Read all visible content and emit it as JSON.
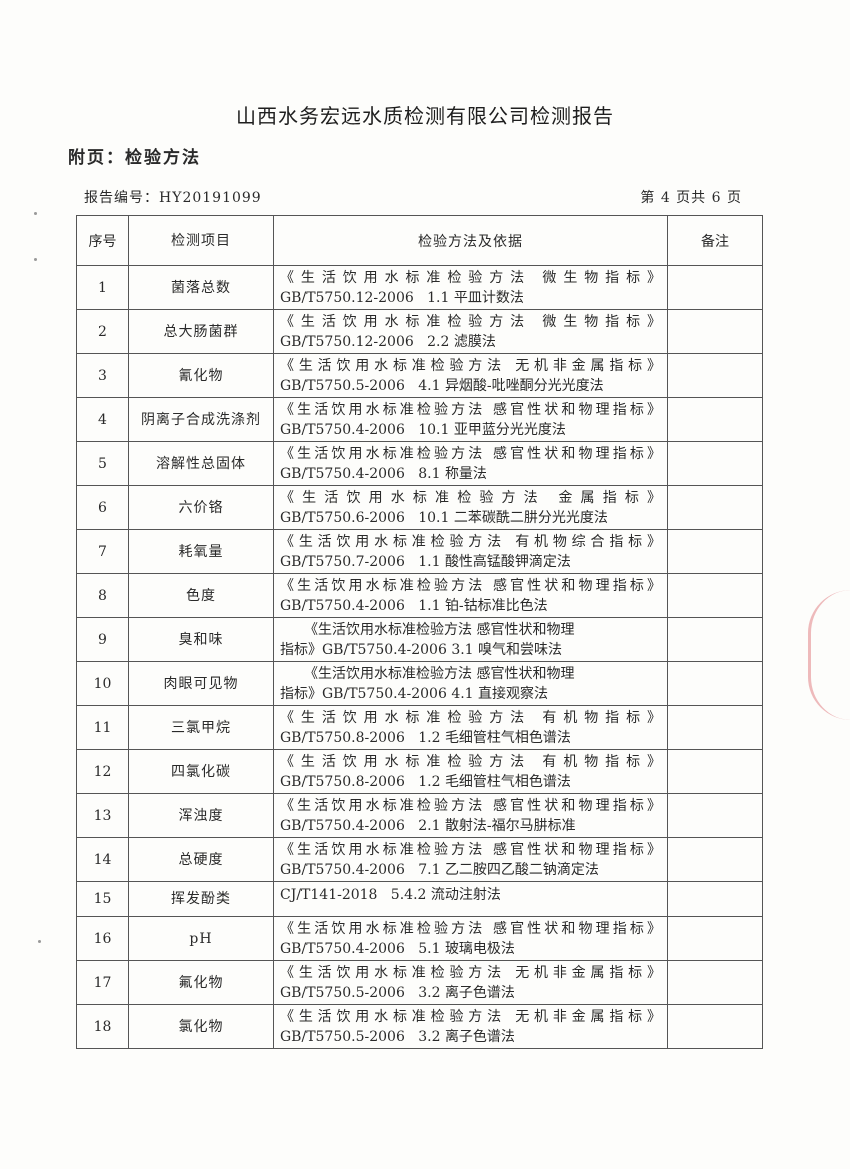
{
  "header": {
    "title": "山西水务宏远水质检测有限公司检测报告",
    "subtitle": "附页：检验方法",
    "report_no": "报告编号：HY20191099",
    "page_info": "第 4 页共 6 页"
  },
  "table": {
    "headers": [
      "序号",
      "检测项目",
      "检验方法及依据",
      "备注"
    ],
    "rows": [
      {
        "no": "1",
        "item": "菌落总数",
        "line1": "《生活饮用水标准检验方法  微生物指标》",
        "line2": "GB/T5750.12-2006   1.1 平皿计数法"
      },
      {
        "no": "2",
        "item": "总大肠菌群",
        "line1": "《生活饮用水标准检验方法  微生物指标》",
        "line2": "GB/T5750.12-2006   2.2 滤膜法"
      },
      {
        "no": "3",
        "item": "氰化物",
        "line1": "《生活饮用水标准检验方法 无机非金属指标》",
        "line2": "GB/T5750.5-2006   4.1 异烟酸-吡唑酮分光光度法"
      },
      {
        "no": "4",
        "item": "阴离子合成洗涤剂",
        "line1": "《生活饮用水标准检验方法 感官性状和物理指标》",
        "line2": "GB/T5750.4-2006   10.1 亚甲蓝分光光度法"
      },
      {
        "no": "5",
        "item": "溶解性总固体",
        "line1": "《生活饮用水标准检验方法 感官性状和物理指标》",
        "line2": "GB/T5750.4-2006   8.1 称量法"
      },
      {
        "no": "6",
        "item": "六价铬",
        "line1": "《生活饮用水标准检验方法  金属指标》",
        "line2": "GB/T5750.6-2006   10.1 二苯碳酰二肼分光光度法"
      },
      {
        "no": "7",
        "item": "耗氧量",
        "line1": "《生活饮用水标准检验方法 有机物综合指标》",
        "line2": "GB/T5750.7-2006   1.1 酸性高锰酸钾滴定法"
      },
      {
        "no": "8",
        "item": "色度",
        "line1": "《生活饮用水标准检验方法 感官性状和物理指标》",
        "line2": "GB/T5750.4-2006   1.1 铂-钴标准比色法"
      },
      {
        "no": "9",
        "item": "臭和味",
        "line1": "《生活饮用水标准检验方法 感官性状和物理",
        "line2": "指标》GB/T5750.4-2006 3.1 嗅气和尝味法"
      },
      {
        "no": "10",
        "item": "肉眼可见物",
        "line1": "《生活饮用水标准检验方法 感官性状和物理",
        "line2": "指标》GB/T5750.4-2006 4.1 直接观察法"
      },
      {
        "no": "11",
        "item": "三氯甲烷",
        "line1": "《生活饮用水标准检验方法  有机物指标》",
        "line2": "GB/T5750.8-2006   1.2 毛细管柱气相色谱法"
      },
      {
        "no": "12",
        "item": "四氯化碳",
        "line1": "《生活饮用水标准检验方法  有机物指标》",
        "line2": "GB/T5750.8-2006   1.2 毛细管柱气相色谱法"
      },
      {
        "no": "13",
        "item": "浑浊度",
        "line1": "《生活饮用水标准检验方法 感官性状和物理指标》",
        "line2": "GB/T5750.4-2006   2.1 散射法-福尔马肼标准"
      },
      {
        "no": "14",
        "item": "总硬度",
        "line1": "《生活饮用水标准检验方法 感官性状和物理指标》",
        "line2": "GB/T5750.4-2006   7.1 乙二胺四乙酸二钠滴定法"
      },
      {
        "no": "15",
        "item": "挥发酚类",
        "line1": "",
        "line2": "CJ/T141-2018   5.4.2 流动注射法"
      },
      {
        "no": "16",
        "item": "pH",
        "line1": "《生活饮用水标准检验方法 感官性状和物理指标》",
        "line2": "GB/T5750.4-2006   5.1 玻璃电极法"
      },
      {
        "no": "17",
        "item": "氟化物",
        "line1": "《生活饮用水标准检验方法 无机非金属指标》",
        "line2": "GB/T5750.5-2006   3.2 离子色谱法"
      },
      {
        "no": "18",
        "item": "氯化物",
        "line1": "《生活饮用水标准检验方法 无机非金属指标》",
        "line2": "GB/T5750.5-2006   3.2 离子色谱法"
      }
    ]
  },
  "stamp_color": "#d23c46"
}
